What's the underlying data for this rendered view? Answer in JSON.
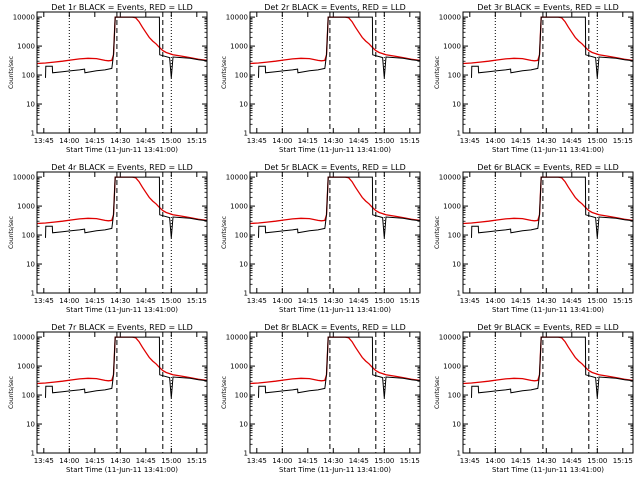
{
  "colors": {
    "events": "#000000",
    "lld": "#e00000",
    "axis": "#000000",
    "background": "#ffffff"
  },
  "shared": {
    "y_label": "Counts/sec",
    "x_label": "Start Time (11-Jun-11 13:41:00)",
    "x_ticks": [
      "13:45",
      "14:00",
      "14:15",
      "14:30",
      "14:45",
      "15:00",
      "15:15"
    ],
    "y_ticks": [
      "1",
      "10",
      "100",
      "1000",
      "10000"
    ],
    "dotted_markers": [
      "14:00",
      "15:00"
    ],
    "dashed_markers": [
      "14:28",
      "14:55"
    ]
  },
  "panels": [
    {
      "title": "Det 1r BLACK = Events, RED = LLD"
    },
    {
      "title": "Det 2r BLACK = Events, RED = LLD"
    },
    {
      "title": "Det 3r BLACK = Events, RED = LLD"
    },
    {
      "title": "Det 4r BLACK = Events, RED = LLD"
    },
    {
      "title": "Det 5r BLACK = Events, RED = LLD"
    },
    {
      "title": "Det 6r BLACK = Events, RED = LLD"
    },
    {
      "title": "Det 7r BLACK = Events, RED = LLD"
    },
    {
      "title": "Det 8r BLACK = Events, RED = LLD"
    },
    {
      "title": "Det 9r BLACK = Events, RED = LLD"
    }
  ],
  "chart_data": {
    "type": "line",
    "layout": "3x3 small multiples",
    "xlabel": "Start Time (11-Jun-11 13:41:00)",
    "ylabel": "Counts/sec",
    "x_units": "minutes after 13:41",
    "xlim": [
      0,
      100
    ],
    "ylim": [
      1,
      15000
    ],
    "y_scale": "log",
    "series": [
      {
        "name": "LLD",
        "color": "#e00000",
        "x": [
          0,
          5,
          10,
          15,
          20,
          25,
          30,
          35,
          40,
          42,
          44,
          45,
          46,
          48,
          50,
          52,
          54,
          56,
          58,
          60,
          62,
          64,
          66,
          68,
          70,
          72,
          74,
          76,
          78,
          80,
          85,
          90,
          95,
          100
        ],
        "values": [
          250,
          260,
          280,
          300,
          330,
          360,
          380,
          370,
          320,
          310,
          320,
          500,
          10000,
          10000,
          10000,
          10000,
          10000,
          10000,
          9500,
          7000,
          4500,
          3000,
          2000,
          1500,
          1200,
          900,
          700,
          600,
          550,
          500,
          450,
          400,
          350,
          320
        ]
      },
      {
        "name": "Events",
        "color": "#000000",
        "x": [
          5,
          5.2,
          7,
          9,
          9.2,
          15,
          20,
          25,
          28,
          28.2,
          35,
          40,
          42,
          44,
          44.2,
          45,
          46,
          48,
          52,
          56,
          60,
          72,
          72.2,
          78,
          79,
          80,
          85,
          90,
          95,
          100
        ],
        "values": [
          80,
          200,
          200,
          200,
          120,
          130,
          140,
          150,
          160,
          120,
          140,
          150,
          160,
          170,
          200,
          500,
          10000,
          10000,
          10000,
          10000,
          10000,
          10000,
          500,
          400,
          80,
          420,
          400,
          380,
          340,
          310
        ]
      }
    ],
    "x_ticks": [
      "13:45",
      "14:00",
      "14:15",
      "14:30",
      "14:45",
      "15:00",
      "15:15"
    ],
    "y_ticks": [
      "1",
      "10",
      "100",
      "1000",
      "10000"
    ],
    "grid": false,
    "legend": "in title"
  }
}
